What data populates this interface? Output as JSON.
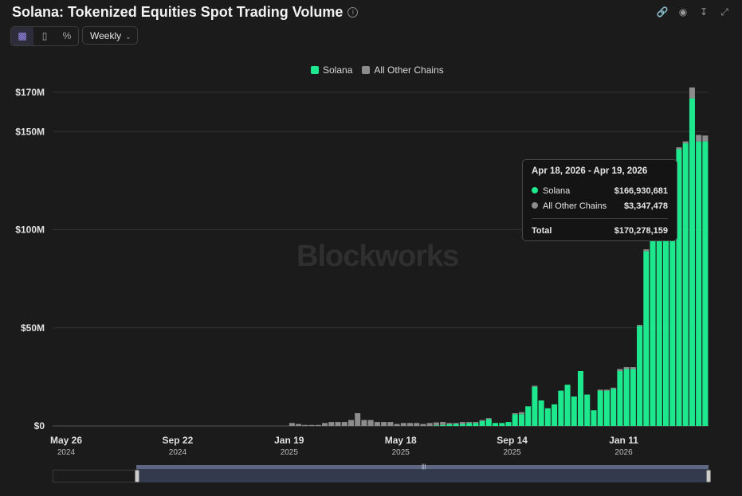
{
  "header": {
    "title": "Solana: Tokenized Equities Spot Trading Volume",
    "info_icon": "info-icon",
    "icons": [
      "link-icon",
      "camera-icon",
      "download-icon",
      "expand-icon"
    ]
  },
  "controls": {
    "chart_types": [
      "bar-chart-icon",
      "stacked-bar-icon",
      "percent-icon"
    ],
    "interval": "Weekly"
  },
  "watermark": "Blockworks",
  "tooltip": {
    "header": "Apr 18, 2026 - Apr 19, 2026",
    "rows": [
      {
        "label": "Solana",
        "value": "$166,930,681",
        "color": "#1ee88e"
      },
      {
        "label": "All Other Chains",
        "value": "$3,347,478",
        "color": "#8c8c8c"
      }
    ],
    "total_label": "Total",
    "total_value": "$170,278,159"
  },
  "chart_data": {
    "type": "bar",
    "stacked": true,
    "legend": [
      "Solana",
      "All Other Chains"
    ],
    "legend_position": "top-center",
    "colors": {
      "Solana": "#1ee88e",
      "All Other Chains": "#8c8c8c"
    },
    "y_ticks": [
      "$0",
      "$50M",
      "$100M",
      "$150M",
      "$170M"
    ],
    "y_tick_values": [
      0,
      50,
      100,
      150,
      170
    ],
    "ylim": [
      0,
      170
    ],
    "y_unit": "USD millions",
    "x_ticks": [
      {
        "label": "May 26",
        "year": "2024",
        "index": 0
      },
      {
        "label": "Sep 22",
        "year": "2024",
        "index": 17
      },
      {
        "label": "Jan 19",
        "year": "2025",
        "index": 34
      },
      {
        "label": "May 18",
        "year": "2025",
        "index": 51
      },
      {
        "label": "Sep 14",
        "year": "2025",
        "index": 68
      },
      {
        "label": "Jan 11",
        "year": "2026",
        "index": 85
      }
    ],
    "grid": true,
    "series": [
      {
        "name": "Solana",
        "values": [
          0,
          0,
          0,
          0,
          0,
          0,
          0,
          0,
          0,
          0,
          0,
          0,
          0,
          0,
          0,
          0,
          0,
          0,
          0,
          0,
          0,
          0,
          0,
          0,
          0,
          0,
          0,
          0,
          0,
          0,
          0,
          0,
          0,
          0,
          0,
          0,
          0,
          0,
          0,
          0,
          0,
          0,
          0,
          0,
          0,
          0,
          0,
          0,
          0,
          0,
          0,
          0,
          0,
          0,
          0,
          0,
          0,
          0,
          0.3,
          0.5,
          0.8,
          1,
          1,
          1.5,
          1.5,
          2.5,
          3.5,
          1.5,
          1.5,
          2,
          6,
          6,
          10,
          20,
          13,
          9,
          11,
          18,
          21,
          15,
          28,
          16,
          8,
          18,
          18,
          19,
          28,
          29,
          29,
          51,
          89,
          97,
          104,
          110,
          118,
          141,
          144,
          167,
          145,
          145
        ]
      },
      {
        "name": "All Other Chains",
        "values": [
          0,
          0,
          0,
          0,
          0,
          0,
          0,
          0,
          0,
          0,
          0,
          0,
          0,
          0,
          0,
          0,
          0,
          0,
          0,
          0,
          0,
          0,
          0,
          0,
          0,
          0,
          0,
          0,
          0,
          0,
          0,
          0,
          0,
          0,
          0,
          0,
          1.5,
          1,
          0.5,
          0.5,
          0.5,
          1.5,
          2,
          2,
          2,
          3,
          6.5,
          3,
          3,
          2,
          2,
          2,
          1,
          1.5,
          1.5,
          1.5,
          1,
          1.5,
          1.5,
          1.5,
          0.7,
          0.5,
          1,
          0.5,
          0.5,
          0.5,
          0.3,
          0,
          0,
          0,
          0.5,
          1,
          0,
          0.3,
          0,
          0,
          0,
          0,
          0,
          0,
          0,
          0,
          0,
          0.5,
          0.5,
          0.5,
          1,
          1,
          1,
          0.5,
          1,
          1,
          1,
          1,
          1,
          1,
          1,
          5.5,
          3.3,
          3,
          3
        ]
      }
    ],
    "brush": {
      "window_start_index": 0,
      "window_end_index": 100
    }
  }
}
